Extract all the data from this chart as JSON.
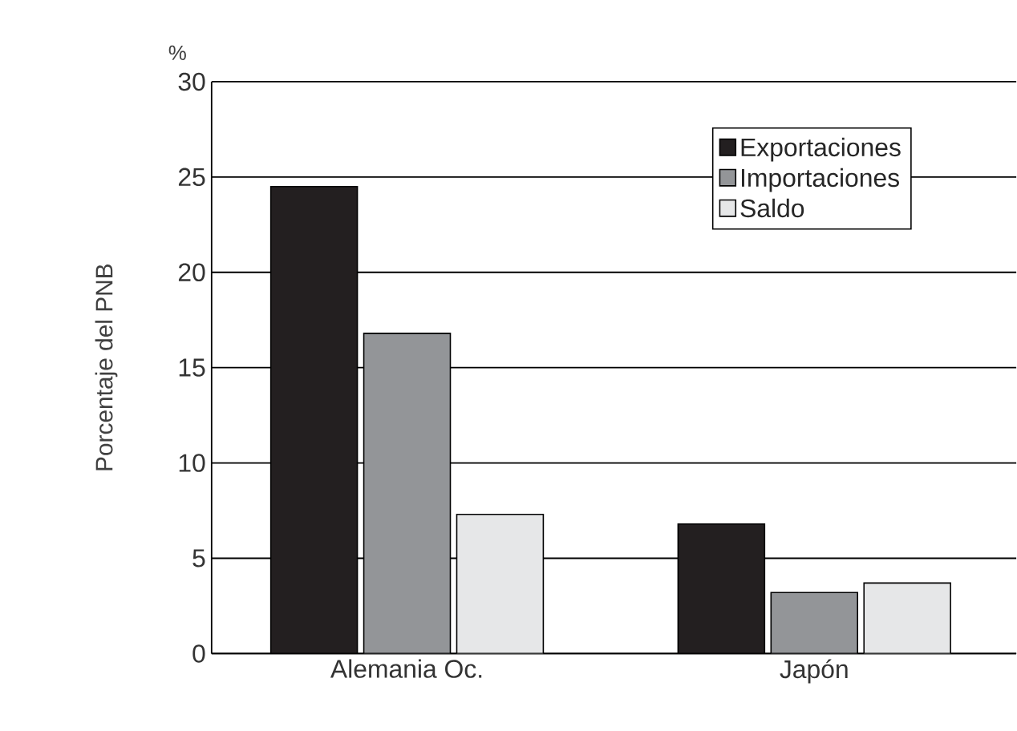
{
  "chart_data": {
    "type": "bar",
    "ylabel": "Porcentaje del PNB",
    "annotations": [
      "%"
    ],
    "categories": [
      "Alemania  Oc.",
      "Japón"
    ],
    "series": [
      {
        "name": "Exportaciones",
        "color": "#231f20",
        "values": [
          24.5,
          6.8
        ]
      },
      {
        "name": "Importaciones",
        "color": "#939598",
        "values": [
          16.8,
          3.2
        ]
      },
      {
        "name": "Saldo",
        "color": "#e6e7e8",
        "values": [
          7.3,
          3.7
        ]
      }
    ],
    "ylim": [
      0,
      30
    ],
    "yticks": [
      0,
      5,
      10,
      15,
      20,
      25,
      30
    ],
    "grid": "y",
    "legend": "top right"
  }
}
